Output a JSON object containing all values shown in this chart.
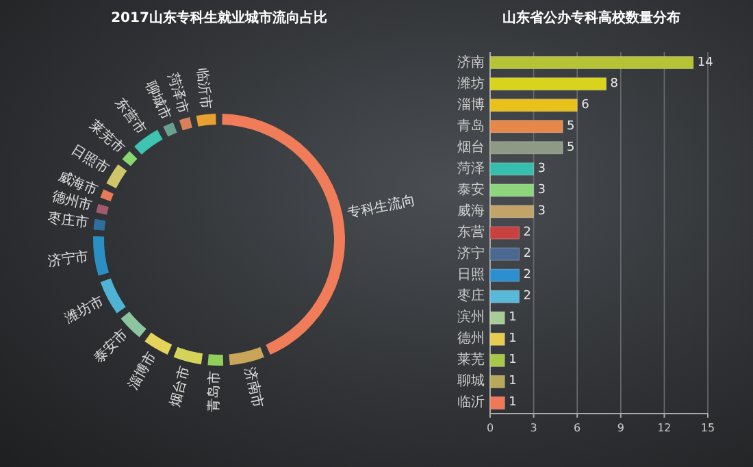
{
  "chart_data": [
    {
      "type": "donut",
      "title": "2017山东专科生就业城市流向占比",
      "categories": [
        "专科生流向",
        "济南市",
        "青岛市",
        "烟台市",
        "淄博市",
        "泰安市",
        "潍坊市",
        "济宁市",
        "枣庄市",
        "德州市",
        "威海市",
        "日照市",
        "莱芜市",
        "东营市",
        "聊城市",
        "菏泽市",
        "临沂市"
      ],
      "values": [
        50,
        5.2,
        2.3,
        4.2,
        3.9,
        3.9,
        5.2,
        5.9,
        1.6,
        1.3,
        1.3,
        3.3,
        1.6,
        4.2,
        1.6,
        1.6,
        2.9
      ],
      "colors": [
        "#f07c5a",
        "#c9a55a",
        "#8fcf5a",
        "#d3d35a",
        "#e5d45a",
        "#8cc4a0",
        "#4fb3d6",
        "#2b8fc4",
        "#2e6fa0",
        "#a05a6e",
        "#e87a5a",
        "#cfc56a",
        "#88d870",
        "#3ec4b0",
        "#6aa090",
        "#d8805a",
        "#e8a030"
      ]
    },
    {
      "type": "bar",
      "orientation": "horizontal",
      "title": "山东省公办专科高校数量分布",
      "categories": [
        "济南",
        "潍坊",
        "淄博",
        "青岛",
        "烟台",
        "菏泽",
        "泰安",
        "威海",
        "东营",
        "济宁",
        "日照",
        "枣庄",
        "滨州",
        "德州",
        "莱芜",
        "聊城",
        "临沂"
      ],
      "values": [
        14,
        8,
        6,
        5,
        5,
        3,
        3,
        3,
        2,
        2,
        2,
        2,
        1,
        1,
        1,
        1,
        1
      ],
      "colors": [
        "#b5c334",
        "#d8d41e",
        "#e8c11a",
        "#e8874a",
        "#8c9a86",
        "#36bfae",
        "#8ed67e",
        "#c2a468",
        "#c94040",
        "#4a6890",
        "#2c8fcf",
        "#5ab8d8",
        "#a8cc98",
        "#e8cc50",
        "#a8c848",
        "#b8a85a",
        "#f07858"
      ],
      "xlim": [
        0,
        15
      ],
      "xticks": [
        0,
        3,
        6,
        9,
        12,
        15
      ],
      "grid": "x",
      "data_labels": true
    }
  ]
}
